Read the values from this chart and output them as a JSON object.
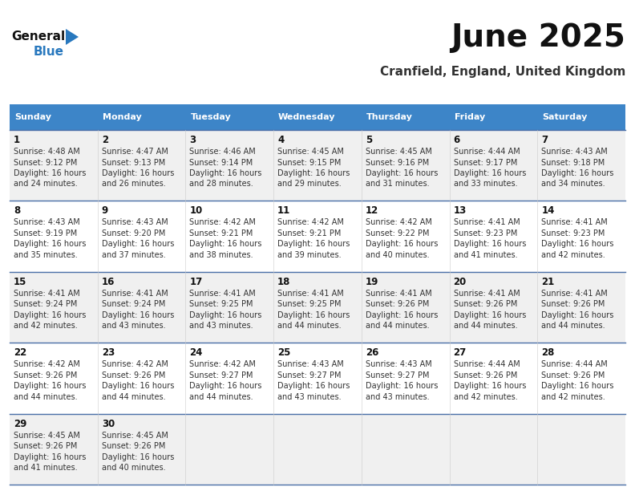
{
  "title": "June 2025",
  "subtitle": "Cranfield, England, United Kingdom",
  "days_of_week": [
    "Sunday",
    "Monday",
    "Tuesday",
    "Wednesday",
    "Thursday",
    "Friday",
    "Saturday"
  ],
  "header_bg": "#3d85c8",
  "header_text": "#ffffff",
  "row_bg_odd": "#f0f0f0",
  "row_bg_even": "#ffffff",
  "separator_color": "#4a6fa8",
  "day_num_color": "#111111",
  "data_text_color": "#333333",
  "title_color": "#111111",
  "subtitle_color": "#333333",
  "logo_general_color": "#111111",
  "logo_blue_color": "#2878be",
  "calendar_data": [
    {
      "day": 1,
      "col": 0,
      "row": 0,
      "sunrise": "4:48 AM",
      "sunset": "9:12 PM",
      "daylight": "16 hours and 24 minutes."
    },
    {
      "day": 2,
      "col": 1,
      "row": 0,
      "sunrise": "4:47 AM",
      "sunset": "9:13 PM",
      "daylight": "16 hours and 26 minutes."
    },
    {
      "day": 3,
      "col": 2,
      "row": 0,
      "sunrise": "4:46 AM",
      "sunset": "9:14 PM",
      "daylight": "16 hours and 28 minutes."
    },
    {
      "day": 4,
      "col": 3,
      "row": 0,
      "sunrise": "4:45 AM",
      "sunset": "9:15 PM",
      "daylight": "16 hours and 29 minutes."
    },
    {
      "day": 5,
      "col": 4,
      "row": 0,
      "sunrise": "4:45 AM",
      "sunset": "9:16 PM",
      "daylight": "16 hours and 31 minutes."
    },
    {
      "day": 6,
      "col": 5,
      "row": 0,
      "sunrise": "4:44 AM",
      "sunset": "9:17 PM",
      "daylight": "16 hours and 33 minutes."
    },
    {
      "day": 7,
      "col": 6,
      "row": 0,
      "sunrise": "4:43 AM",
      "sunset": "9:18 PM",
      "daylight": "16 hours and 34 minutes."
    },
    {
      "day": 8,
      "col": 0,
      "row": 1,
      "sunrise": "4:43 AM",
      "sunset": "9:19 PM",
      "daylight": "16 hours and 35 minutes."
    },
    {
      "day": 9,
      "col": 1,
      "row": 1,
      "sunrise": "4:43 AM",
      "sunset": "9:20 PM",
      "daylight": "16 hours and 37 minutes."
    },
    {
      "day": 10,
      "col": 2,
      "row": 1,
      "sunrise": "4:42 AM",
      "sunset": "9:21 PM",
      "daylight": "16 hours and 38 minutes."
    },
    {
      "day": 11,
      "col": 3,
      "row": 1,
      "sunrise": "4:42 AM",
      "sunset": "9:21 PM",
      "daylight": "16 hours and 39 minutes."
    },
    {
      "day": 12,
      "col": 4,
      "row": 1,
      "sunrise": "4:42 AM",
      "sunset": "9:22 PM",
      "daylight": "16 hours and 40 minutes."
    },
    {
      "day": 13,
      "col": 5,
      "row": 1,
      "sunrise": "4:41 AM",
      "sunset": "9:23 PM",
      "daylight": "16 hours and 41 minutes."
    },
    {
      "day": 14,
      "col": 6,
      "row": 1,
      "sunrise": "4:41 AM",
      "sunset": "9:23 PM",
      "daylight": "16 hours and 42 minutes."
    },
    {
      "day": 15,
      "col": 0,
      "row": 2,
      "sunrise": "4:41 AM",
      "sunset": "9:24 PM",
      "daylight": "16 hours and 42 minutes."
    },
    {
      "day": 16,
      "col": 1,
      "row": 2,
      "sunrise": "4:41 AM",
      "sunset": "9:24 PM",
      "daylight": "16 hours and 43 minutes."
    },
    {
      "day": 17,
      "col": 2,
      "row": 2,
      "sunrise": "4:41 AM",
      "sunset": "9:25 PM",
      "daylight": "16 hours and 43 minutes."
    },
    {
      "day": 18,
      "col": 3,
      "row": 2,
      "sunrise": "4:41 AM",
      "sunset": "9:25 PM",
      "daylight": "16 hours and 44 minutes."
    },
    {
      "day": 19,
      "col": 4,
      "row": 2,
      "sunrise": "4:41 AM",
      "sunset": "9:26 PM",
      "daylight": "16 hours and 44 minutes."
    },
    {
      "day": 20,
      "col": 5,
      "row": 2,
      "sunrise": "4:41 AM",
      "sunset": "9:26 PM",
      "daylight": "16 hours and 44 minutes."
    },
    {
      "day": 21,
      "col": 6,
      "row": 2,
      "sunrise": "4:41 AM",
      "sunset": "9:26 PM",
      "daylight": "16 hours and 44 minutes."
    },
    {
      "day": 22,
      "col": 0,
      "row": 3,
      "sunrise": "4:42 AM",
      "sunset": "9:26 PM",
      "daylight": "16 hours and 44 minutes."
    },
    {
      "day": 23,
      "col": 1,
      "row": 3,
      "sunrise": "4:42 AM",
      "sunset": "9:26 PM",
      "daylight": "16 hours and 44 minutes."
    },
    {
      "day": 24,
      "col": 2,
      "row": 3,
      "sunrise": "4:42 AM",
      "sunset": "9:27 PM",
      "daylight": "16 hours and 44 minutes."
    },
    {
      "day": 25,
      "col": 3,
      "row": 3,
      "sunrise": "4:43 AM",
      "sunset": "9:27 PM",
      "daylight": "16 hours and 43 minutes."
    },
    {
      "day": 26,
      "col": 4,
      "row": 3,
      "sunrise": "4:43 AM",
      "sunset": "9:27 PM",
      "daylight": "16 hours and 43 minutes."
    },
    {
      "day": 27,
      "col": 5,
      "row": 3,
      "sunrise": "4:44 AM",
      "sunset": "9:26 PM",
      "daylight": "16 hours and 42 minutes."
    },
    {
      "day": 28,
      "col": 6,
      "row": 3,
      "sunrise": "4:44 AM",
      "sunset": "9:26 PM",
      "daylight": "16 hours and 42 minutes."
    },
    {
      "day": 29,
      "col": 0,
      "row": 4,
      "sunrise": "4:45 AM",
      "sunset": "9:26 PM",
      "daylight": "16 hours and 41 minutes."
    },
    {
      "day": 30,
      "col": 1,
      "row": 4,
      "sunrise": "4:45 AM",
      "sunset": "9:26 PM",
      "daylight": "16 hours and 40 minutes."
    }
  ]
}
